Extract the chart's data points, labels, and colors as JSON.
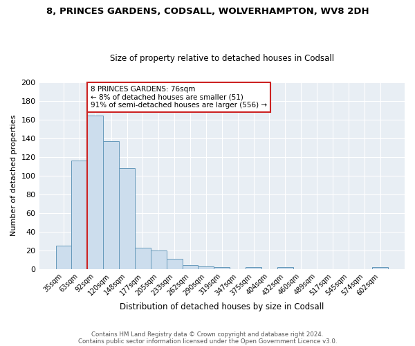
{
  "title": "8, PRINCES GARDENS, CODSALL, WOLVERHAMPTON, WV8 2DH",
  "subtitle": "Size of property relative to detached houses in Codsall",
  "xlabel": "Distribution of detached houses by size in Codsall",
  "ylabel": "Number of detached properties",
  "bar_labels": [
    "35sqm",
    "63sqm",
    "92sqm",
    "120sqm",
    "148sqm",
    "177sqm",
    "205sqm",
    "233sqm",
    "262sqm",
    "290sqm",
    "319sqm",
    "347sqm",
    "375sqm",
    "404sqm",
    "432sqm",
    "460sqm",
    "489sqm",
    "517sqm",
    "545sqm",
    "574sqm",
    "602sqm"
  ],
  "bar_values": [
    25,
    116,
    164,
    137,
    108,
    23,
    20,
    11,
    4,
    3,
    2,
    0,
    2,
    0,
    2,
    0,
    0,
    0,
    0,
    0,
    2
  ],
  "bar_color": "#ccdded",
  "bar_edge_color": "#6699bb",
  "vline_x": 1.5,
  "vline_color": "#cc2222",
  "annotation_text": "8 PRINCES GARDENS: 76sqm\n← 8% of detached houses are smaller (51)\n91% of semi-detached houses are larger (556) →",
  "annotation_box_color": "white",
  "annotation_box_edge": "#cc2222",
  "ylim": [
    0,
    200
  ],
  "yticks": [
    0,
    20,
    40,
    60,
    80,
    100,
    120,
    140,
    160,
    180,
    200
  ],
  "footer1": "Contains HM Land Registry data © Crown copyright and database right 2024.",
  "footer2": "Contains public sector information licensed under the Open Government Licence v3.0.",
  "bg_color": "#ffffff",
  "plot_bg_color": "#e8eef4",
  "title_fontsize": 9.5,
  "subtitle_fontsize": 8.5,
  "grid_color": "#ffffff"
}
